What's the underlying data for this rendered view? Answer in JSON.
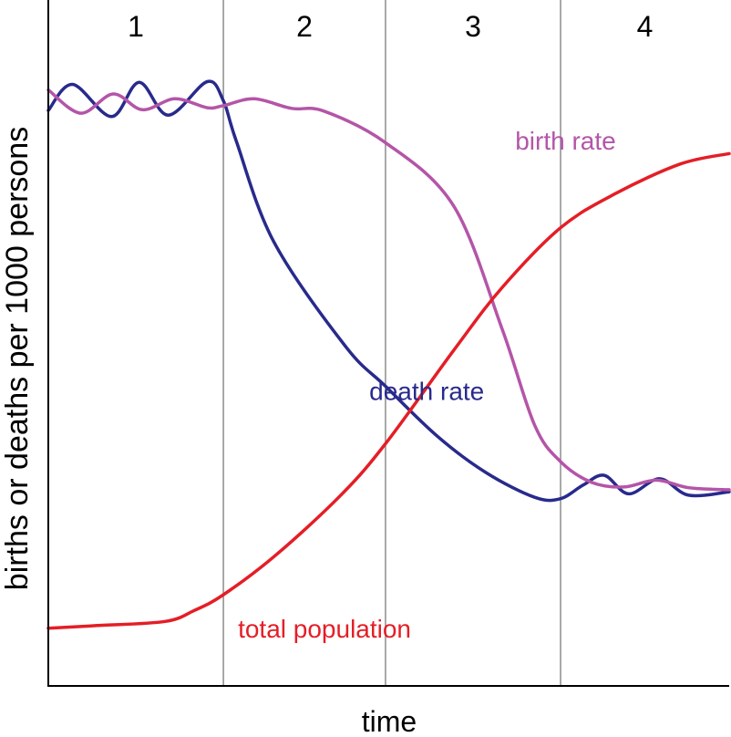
{
  "chart_data": {
    "type": "line",
    "xlabel": "time",
    "ylabel": "births or deaths per 1000 persons",
    "stages": [
      "1",
      "2",
      "3",
      "4"
    ],
    "stage_boundaries": [
      1.08,
      2.08,
      3.16
    ],
    "xlim": [
      0,
      4.2
    ],
    "ylim": [
      0,
      100
    ],
    "grid": "vertical stage dividers",
    "colors": {
      "birth rate": "#b455a8",
      "death rate": "#282a8c",
      "total population": "#e41e26",
      "axes": "#000000",
      "dividers": "#8c8c8c"
    },
    "series": [
      {
        "name": "death rate",
        "label_at": {
          "x": 1.98,
          "y": 43
        },
        "points": [
          [
            0.0,
            83.9
          ],
          [
            0.15,
            87.7
          ],
          [
            0.39,
            83.0
          ],
          [
            0.56,
            88.0
          ],
          [
            0.74,
            83.2
          ],
          [
            0.98,
            88.1
          ],
          [
            1.08,
            85.3
          ],
          [
            1.16,
            79.4
          ],
          [
            1.39,
            64.8
          ],
          [
            1.83,
            49.6
          ],
          [
            2.08,
            43.7
          ],
          [
            2.4,
            36.4
          ],
          [
            2.7,
            31.1
          ],
          [
            3.0,
            27.5
          ],
          [
            3.16,
            27.3
          ],
          [
            3.3,
            29.3
          ],
          [
            3.43,
            30.7
          ],
          [
            3.58,
            28.0
          ],
          [
            3.77,
            30.2
          ],
          [
            3.95,
            27.8
          ],
          [
            4.2,
            28.3
          ]
        ]
      },
      {
        "name": "birth rate",
        "label_at": {
          "x": 2.88,
          "y": 79.5
        },
        "points": [
          [
            0.0,
            86.9
          ],
          [
            0.2,
            83.5
          ],
          [
            0.4,
            86.3
          ],
          [
            0.58,
            84.0
          ],
          [
            0.78,
            85.6
          ],
          [
            0.98,
            84.3
          ],
          [
            1.08,
            84.6
          ],
          [
            1.27,
            85.6
          ],
          [
            1.5,
            84.2
          ],
          [
            1.7,
            83.8
          ],
          [
            2.08,
            79.2
          ],
          [
            2.5,
            70.0
          ],
          [
            2.8,
            52.0
          ],
          [
            3.0,
            38.0
          ],
          [
            3.16,
            32.7
          ],
          [
            3.35,
            29.7
          ],
          [
            3.55,
            29.0
          ],
          [
            3.75,
            30.0
          ],
          [
            3.95,
            28.9
          ],
          [
            4.2,
            28.6
          ]
        ]
      },
      {
        "name": "total population",
        "label_at": {
          "x": 1.17,
          "y": 8.4
        },
        "points": [
          [
            0.0,
            8.4
          ],
          [
            0.3,
            8.8
          ],
          [
            0.72,
            9.4
          ],
          [
            0.9,
            11.0
          ],
          [
            1.08,
            13.3
          ],
          [
            1.4,
            19.0
          ],
          [
            1.8,
            27.7
          ],
          [
            2.08,
            35.3
          ],
          [
            2.5,
            48.9
          ],
          [
            2.8,
            58.1
          ],
          [
            3.16,
            66.8
          ],
          [
            3.5,
            71.8
          ],
          [
            3.9,
            76.1
          ],
          [
            4.2,
            77.6
          ]
        ]
      }
    ]
  }
}
